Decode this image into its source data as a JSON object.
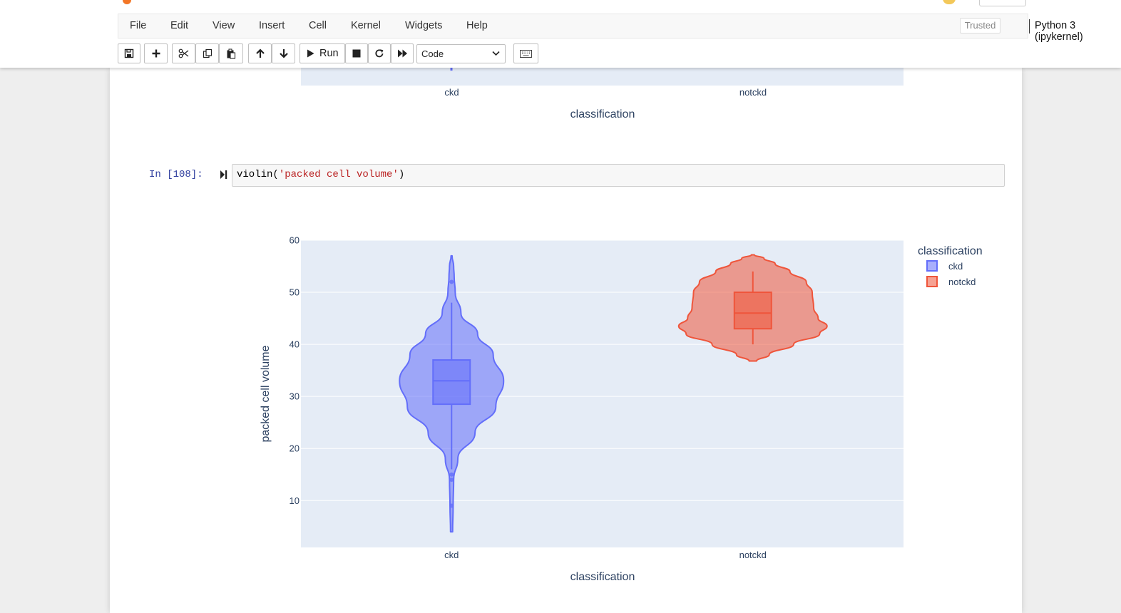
{
  "header": {
    "menu": [
      "File",
      "Edit",
      "View",
      "Insert",
      "Cell",
      "Kernel",
      "Widgets",
      "Help"
    ],
    "trusted_label": "Trusted",
    "kernel_name": "Python 3 (ipykernel)",
    "toolbar": {
      "run_label": "Run",
      "cell_type": "Code"
    }
  },
  "prev_output": {
    "x_ticks": [
      "ckd",
      "notckd"
    ],
    "xlabel": "classification"
  },
  "cell": {
    "prompt": "In [108]:",
    "code_fn": "violin(",
    "code_arg": "'packed cell volume'",
    "code_end": ")"
  },
  "chart_data": {
    "type": "violin",
    "xlabel": "classification",
    "ylabel": "packed cell volume",
    "categories": [
      "ckd",
      "notckd"
    ],
    "y_ticks": [
      10,
      20,
      30,
      40,
      50,
      60
    ],
    "ylim": [
      1,
      60
    ],
    "grid": true,
    "legend": {
      "title": "classification",
      "position": "top-right",
      "entries": [
        "ckd",
        "notckd"
      ]
    },
    "series": [
      {
        "name": "ckd",
        "color": "#636efa",
        "min": 4,
        "q1": 28.5,
        "median": 33,
        "q3": 37,
        "upper_whisker": 48,
        "lower_whisker": 16,
        "max": 57,
        "outliers": [
          52,
          15,
          14,
          9
        ],
        "density": [
          [
            4,
            0.02
          ],
          [
            9,
            0.03
          ],
          [
            14,
            0.04
          ],
          [
            18,
            0.12
          ],
          [
            23,
            0.45
          ],
          [
            28,
            0.85
          ],
          [
            33,
            1.0
          ],
          [
            38,
            0.8
          ],
          [
            42,
            0.5
          ],
          [
            46,
            0.18
          ],
          [
            50,
            0.07
          ],
          [
            53,
            0.05
          ],
          [
            55,
            0.04
          ],
          [
            57,
            0.01
          ]
        ]
      },
      {
        "name": "notckd",
        "color": "#ef553b",
        "min": 36.8,
        "q1": 43,
        "median": 46,
        "q3": 50,
        "upper_whisker": 54,
        "lower_whisker": 40,
        "max": 57.2,
        "outliers": [],
        "density": [
          [
            36.8,
            0.05
          ],
          [
            38,
            0.22
          ],
          [
            40,
            0.55
          ],
          [
            42,
            0.9
          ],
          [
            43.5,
            1.0
          ],
          [
            45,
            0.88
          ],
          [
            47,
            0.82
          ],
          [
            50,
            0.8
          ],
          [
            52,
            0.72
          ],
          [
            54,
            0.5
          ],
          [
            55.5,
            0.3
          ],
          [
            56.5,
            0.15
          ],
          [
            57.2,
            0.02
          ]
        ]
      }
    ]
  }
}
